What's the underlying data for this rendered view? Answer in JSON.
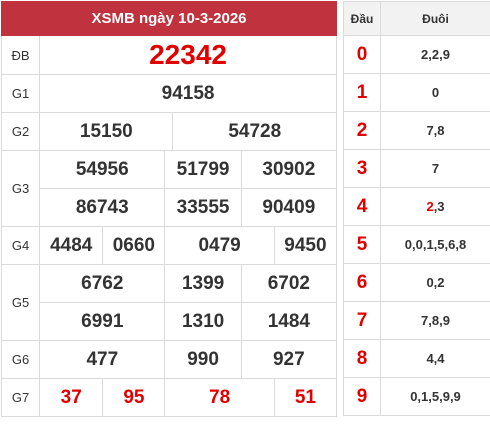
{
  "title": "XSMB ngày 10-3-2026",
  "prizes": {
    "db": {
      "label": "ĐB",
      "numbers": [
        "22342"
      ]
    },
    "g1": {
      "label": "G1",
      "numbers": [
        "94158"
      ]
    },
    "g2": {
      "label": "G2",
      "numbers": [
        "15150",
        "54728"
      ]
    },
    "g3": {
      "label": "G3",
      "numbers": [
        "54956",
        "51799",
        "30902",
        "86743",
        "33555",
        "90409"
      ]
    },
    "g4": {
      "label": "G4",
      "numbers": [
        "4484",
        "0660",
        "0479",
        "9450"
      ]
    },
    "g5": {
      "label": "G5",
      "numbers": [
        "6762",
        "1399",
        "6702",
        "6991",
        "1310",
        "1484"
      ]
    },
    "g6": {
      "label": "G6",
      "numbers": [
        "477",
        "990",
        "927"
      ]
    },
    "g7": {
      "label": "G7",
      "numbers": [
        "37",
        "95",
        "78",
        "51"
      ]
    }
  },
  "loto": {
    "head_label": "Đầu",
    "tail_label": "Đuôi",
    "rows": [
      {
        "head": "0",
        "tail": "2,2,9"
      },
      {
        "head": "1",
        "tail": "0"
      },
      {
        "head": "2",
        "tail": "7,8"
      },
      {
        "head": "3",
        "tail": "7"
      },
      {
        "head": "4",
        "tail_hl": "2",
        "tail_rest": ",3"
      },
      {
        "head": "5",
        "tail": "0,0,1,5,6,8"
      },
      {
        "head": "6",
        "tail": "0,2"
      },
      {
        "head": "7",
        "tail": "7,8,9"
      },
      {
        "head": "8",
        "tail": "4,4"
      },
      {
        "head": "9",
        "tail": "0,1,5,9,9"
      }
    ]
  },
  "colors": {
    "header_bg": "#c0323d",
    "highlight": "#e00000",
    "text": "#333333",
    "border": "#dadada"
  }
}
